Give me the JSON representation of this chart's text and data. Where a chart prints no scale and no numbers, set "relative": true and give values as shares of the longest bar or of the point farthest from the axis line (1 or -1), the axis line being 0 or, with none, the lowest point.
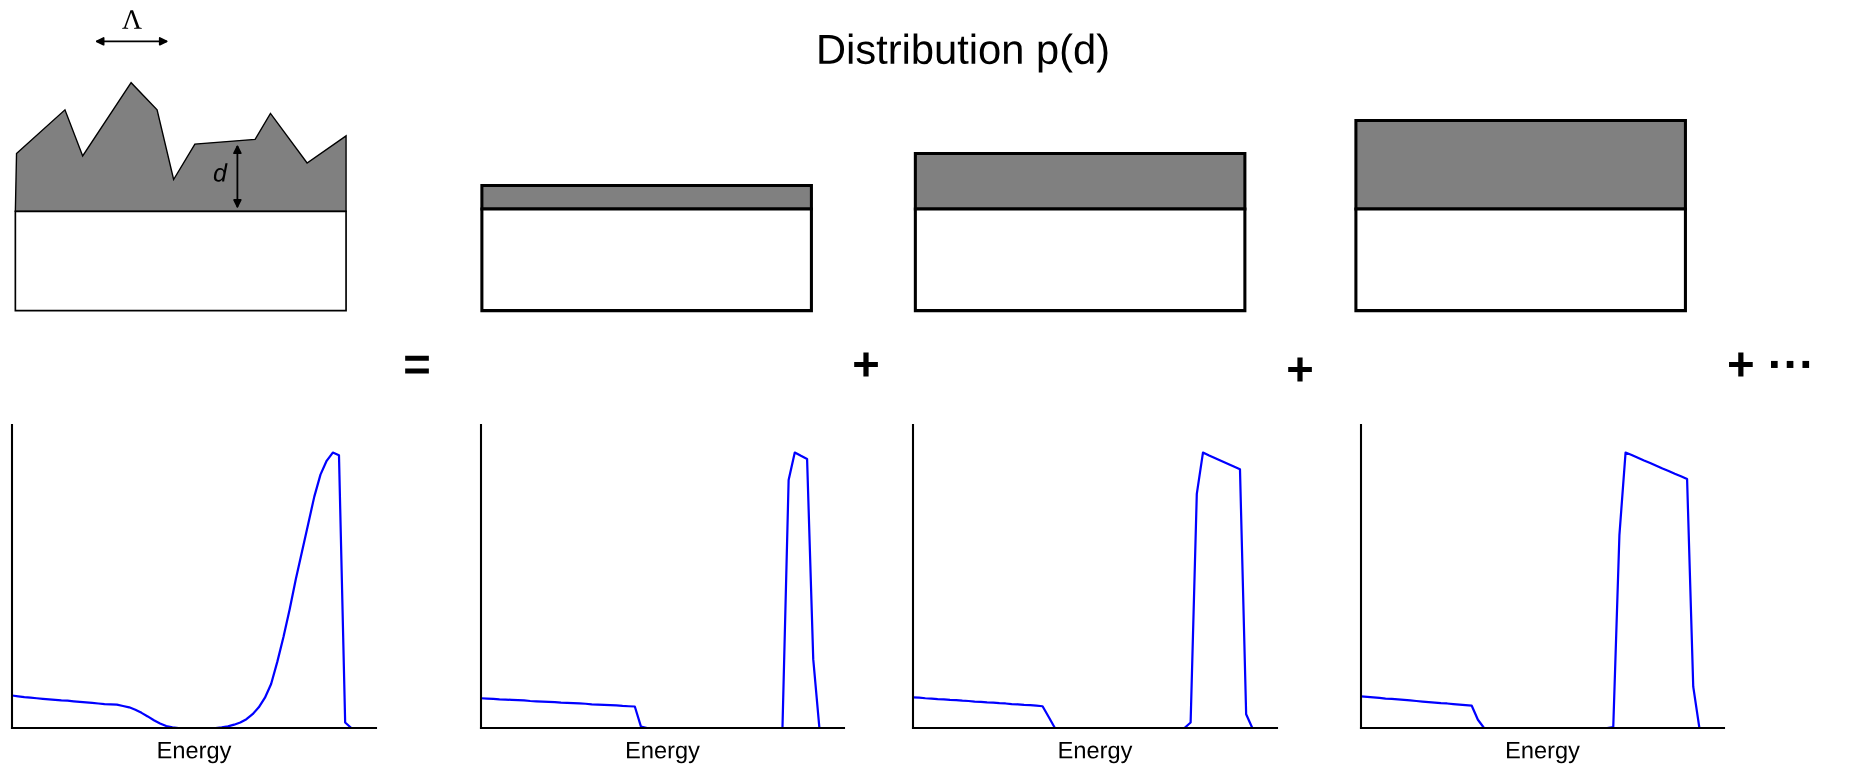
{
  "chart_data": [
    {
      "type": "line",
      "relative": true,
      "xlabel": "Energy",
      "annotations": [
        "Distribution p(d)",
        "Λ",
        "d"
      ],
      "categories": [
        null,
        null,
        null,
        null,
        null,
        null,
        null,
        null,
        null,
        null,
        null,
        null,
        null,
        null,
        null,
        null,
        null,
        null,
        null,
        null,
        null,
        null,
        null,
        null,
        null,
        null,
        null,
        null,
        null,
        null,
        null,
        null,
        null,
        null,
        null,
        null,
        null,
        null,
        null,
        null,
        null,
        null,
        null,
        null,
        null,
        null,
        null,
        null,
        null,
        null,
        null,
        null,
        null,
        null,
        null,
        null,
        null,
        null,
        null,
        null
      ],
      "series": [
        {
          "color": "#0000ff",
          "values": [
            0.118,
            0.115,
            0.112,
            0.11,
            0.108,
            0.106,
            0.104,
            0.102,
            0.1,
            0.099,
            0.097,
            0.095,
            0.093,
            0.091,
            0.089,
            0.087,
            0.086,
            0.085,
            0.08,
            0.075,
            0.066,
            0.055,
            0.042,
            0.028,
            0.016,
            0.007,
            0.002,
            0,
            0,
            0,
            0,
            0,
            0,
            0,
            0.002,
            0.006,
            0.012,
            0.02,
            0.032,
            0.05,
            0.075,
            0.11,
            0.16,
            0.24,
            0.33,
            0.43,
            0.54,
            0.64,
            0.74,
            0.84,
            0.92,
            0.97,
            1,
            0.99,
            0.02,
            0,
            null,
            null,
            null,
            null
          ]
        }
      ]
    },
    {
      "type": "line",
      "relative": true,
      "xlabel": "Energy",
      "annotations": [
        "="
      ],
      "categories": [
        null,
        null,
        null,
        null,
        null,
        null,
        null,
        null,
        null,
        null,
        null,
        null,
        null,
        null,
        null,
        null,
        null,
        null,
        null,
        null,
        null,
        null,
        null,
        null,
        null,
        null,
        null,
        null,
        null,
        null,
        null,
        null,
        null,
        null,
        null,
        null,
        null,
        null,
        null,
        null,
        null,
        null,
        null,
        null,
        null,
        null,
        null,
        null,
        null,
        null,
        null,
        null,
        null,
        null,
        null,
        null,
        null,
        null,
        null,
        null
      ],
      "series": [
        {
          "color": "#0000ff",
          "values": [
            0.108,
            0.107,
            0.106,
            0.104,
            0.103,
            0.102,
            0.101,
            0.1,
            0.098,
            0.097,
            0.096,
            0.095,
            0.094,
            0.092,
            0.091,
            0.09,
            0.089,
            0.088,
            0.086,
            0.085,
            0.084,
            0.083,
            0.082,
            0.08,
            0.079,
            0.078,
            0.005,
            0,
            0,
            0,
            0,
            0,
            0,
            0,
            0,
            0,
            0,
            0,
            0,
            0,
            0,
            0,
            0,
            0,
            0,
            0,
            0,
            0,
            0,
            0,
            0.9,
            1,
            0.988,
            0.977,
            0.25,
            0,
            null,
            null,
            null,
            null
          ]
        }
      ]
    },
    {
      "type": "line",
      "relative": true,
      "xlabel": "Energy",
      "annotations": [
        "+"
      ],
      "categories": [
        null,
        null,
        null,
        null,
        null,
        null,
        null,
        null,
        null,
        null,
        null,
        null,
        null,
        null,
        null,
        null,
        null,
        null,
        null,
        null,
        null,
        null,
        null,
        null,
        null,
        null,
        null,
        null,
        null,
        null,
        null,
        null,
        null,
        null,
        null,
        null,
        null,
        null,
        null,
        null,
        null,
        null,
        null,
        null,
        null,
        null,
        null,
        null,
        null,
        null,
        null,
        null,
        null,
        null,
        null,
        null,
        null,
        null,
        null,
        null
      ],
      "series": [
        {
          "color": "#0000ff",
          "values": [
            0.111,
            0.11,
            0.108,
            0.107,
            0.105,
            0.104,
            0.102,
            0.101,
            0.099,
            0.098,
            0.096,
            0.095,
            0.093,
            0.092,
            0.09,
            0.089,
            0.087,
            0.086,
            0.084,
            0.083,
            0.081,
            0.079,
            0.04,
            0,
            0,
            0,
            0,
            0,
            0,
            0,
            0,
            0,
            0,
            0,
            0,
            0,
            0,
            0,
            0,
            0,
            0,
            0,
            0,
            0,
            0,
            0.02,
            0.85,
            1,
            0.989,
            0.979,
            0.969,
            0.959,
            0.949,
            0.939,
            0.05,
            0,
            null,
            null,
            null,
            null
          ]
        }
      ]
    },
    {
      "type": "line",
      "relative": true,
      "xlabel": "Energy",
      "annotations": [
        "+",
        "+ ···"
      ],
      "categories": [
        null,
        null,
        null,
        null,
        null,
        null,
        null,
        null,
        null,
        null,
        null,
        null,
        null,
        null,
        null,
        null,
        null,
        null,
        null,
        null,
        null,
        null,
        null,
        null,
        null,
        null,
        null,
        null,
        null,
        null,
        null,
        null,
        null,
        null,
        null,
        null,
        null,
        null,
        null,
        null,
        null,
        null,
        null,
        null,
        null,
        null,
        null,
        null,
        null,
        null,
        null,
        null,
        null,
        null,
        null,
        null,
        null,
        null,
        null,
        null
      ],
      "series": [
        {
          "color": "#0000ff",
          "values": [
            0.115,
            0.113,
            0.111,
            0.109,
            0.107,
            0.106,
            0.104,
            0.102,
            0.1,
            0.098,
            0.096,
            0.094,
            0.092,
            0.09,
            0.089,
            0.087,
            0.085,
            0.083,
            0.081,
            0.03,
            0,
            0,
            0,
            0,
            0,
            0,
            0,
            0,
            0,
            0,
            0,
            0,
            0,
            0,
            0,
            0,
            0,
            0,
            0,
            0,
            0,
            0.003,
            0.7,
            1,
            0.991,
            0.981,
            0.971,
            0.962,
            0.952,
            0.942,
            0.933,
            0.923,
            0.914,
            0.904,
            0.15,
            0,
            null,
            null,
            null,
            null
          ]
        }
      ]
    }
  ]
}
